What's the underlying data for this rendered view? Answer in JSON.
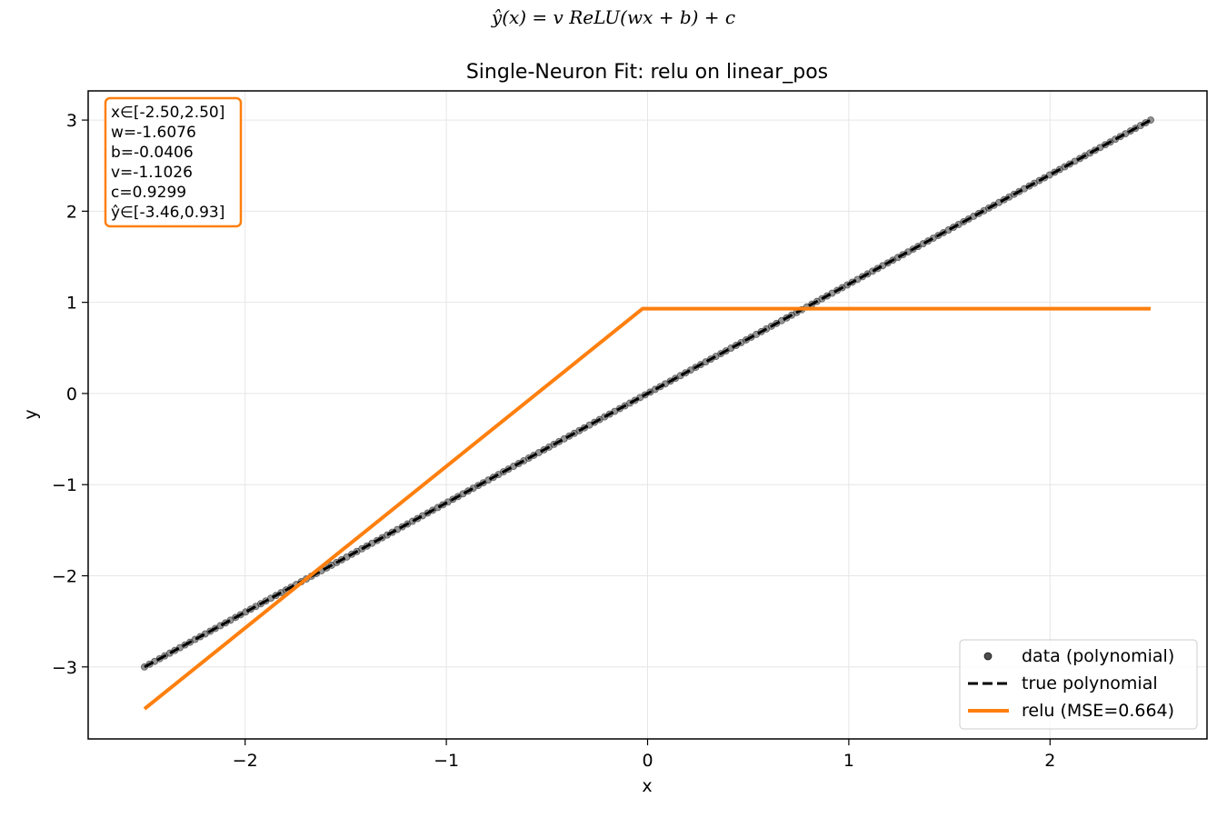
{
  "chart_data": {
    "type": "line",
    "suptitle": "ŷ(x) = v ReLU(wx + b) + c",
    "title": "Single-Neuron Fit: relu on linear_pos",
    "xlabel": "x",
    "ylabel": "y",
    "xlim": [
      -2.78,
      2.78
    ],
    "ylim": [
      -3.79,
      3.32
    ],
    "xticks": [
      -2,
      -1,
      0,
      1,
      2
    ],
    "yticks": [
      -3,
      -2,
      -1,
      0,
      1,
      2,
      3
    ],
    "xtick_labels": [
      "−2",
      "−1",
      "0",
      "1",
      "2"
    ],
    "ytick_labels": [
      "−3",
      "−2",
      "−1",
      "0",
      "1",
      "2",
      "3"
    ],
    "grid": true,
    "legend_position": "lower-right",
    "info_box": {
      "lines": [
        "x∈[-2.50,2.50]",
        "w=-1.6076",
        "b=-0.0406",
        "v=-1.1026",
        "c=0.9299",
        "ŷ∈[-3.46,0.93]"
      ],
      "edge_color": "#ff7f0e"
    },
    "series": [
      {
        "name": "data (polynomial)",
        "kind": "scatter",
        "color": "#4d4d4d",
        "x_range": [
          -2.5,
          2.5
        ],
        "y_range": [
          -3.0,
          3.0
        ],
        "n_points": 200
      },
      {
        "name": "true polynomial",
        "kind": "line",
        "style": "dashed",
        "color": "#000000",
        "x": [
          -2.5,
          2.5
        ],
        "y": [
          -3.0,
          3.0
        ]
      },
      {
        "name": "relu (MSE=0.664)",
        "kind": "line",
        "color": "#ff7f0e",
        "x": [
          -2.5,
          -0.0253,
          2.5
        ],
        "y": [
          -3.46,
          0.9299,
          0.9299
        ]
      }
    ]
  }
}
